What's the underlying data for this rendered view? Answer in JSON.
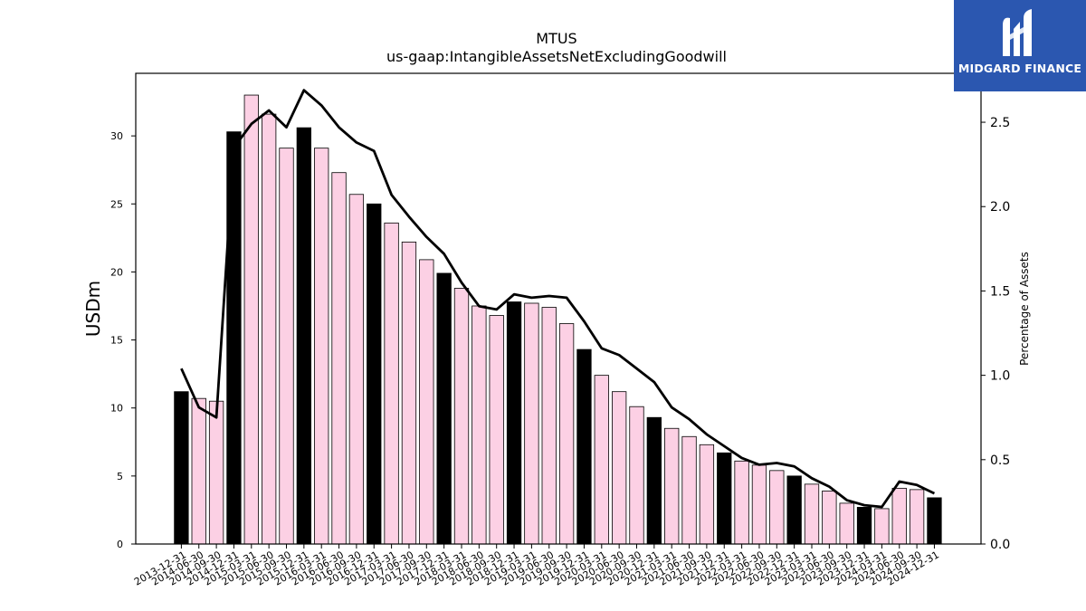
{
  "chart_data": {
    "type": "bar",
    "title": "MTUS",
    "subtitle": "us-gaap:IntangibleAssetsNetExcludingGoodwill",
    "ylabel": "USDm",
    "y2label": "Percentage of Assets",
    "ylim": [
      0,
      34.6
    ],
    "y2lim": [
      0,
      2.79
    ],
    "yticks": [
      0,
      5,
      10,
      15,
      20,
      25,
      30
    ],
    "y2ticks": [
      0.0,
      0.5,
      1.0,
      1.5,
      2.0,
      2.5
    ],
    "y2tick_labels": [
      "0.0",
      "0.5",
      "1.0",
      "1.5",
      "2.0",
      "2.5"
    ],
    "categories": [
      "2013-12-31",
      "2014-06-30",
      "2014-09-30",
      "2014-12-31",
      "2015-03-31",
      "2015-06-30",
      "2015-09-30",
      "2015-12-31",
      "2016-03-31",
      "2016-06-30",
      "2016-09-30",
      "2016-12-31",
      "2017-03-31",
      "2017-06-30",
      "2017-09-30",
      "2017-12-31",
      "2018-03-31",
      "2018-06-30",
      "2018-09-30",
      "2018-12-31",
      "2019-03-31",
      "2019-06-30",
      "2019-09-30",
      "2019-12-31",
      "2020-03-31",
      "2020-06-30",
      "2020-09-30",
      "2020-12-31",
      "2021-03-31",
      "2021-06-30",
      "2021-09-30",
      "2021-12-31",
      "2022-03-31",
      "2022-06-30",
      "2022-09-30",
      "2022-12-31",
      "2023-03-31",
      "2023-06-30",
      "2023-09-30",
      "2023-12-31",
      "2024-03-31",
      "2024-06-30",
      "2024-09-30",
      "2024-12-31"
    ],
    "series": [
      {
        "kind": "bar",
        "axis": "left",
        "values": [
          11.2,
          10.7,
          10.5,
          30.3,
          33.0,
          31.6,
          29.1,
          30.6,
          29.1,
          27.3,
          25.7,
          25.0,
          23.6,
          22.2,
          20.9,
          19.9,
          18.8,
          17.5,
          16.8,
          17.8,
          17.7,
          17.4,
          16.2,
          14.3,
          12.4,
          11.2,
          10.1,
          9.3,
          8.5,
          7.9,
          7.3,
          6.7,
          6.1,
          5.8,
          5.4,
          5.0,
          4.4,
          3.9,
          3.0,
          2.7,
          2.6,
          4.1,
          4.0,
          3.4
        ]
      },
      {
        "kind": "line",
        "axis": "right",
        "values": [
          1.04,
          0.81,
          0.75,
          2.35,
          2.49,
          2.57,
          2.47,
          2.69,
          2.6,
          2.47,
          2.38,
          2.33,
          2.07,
          1.94,
          1.82,
          1.72,
          1.55,
          1.41,
          1.39,
          1.48,
          1.46,
          1.47,
          1.46,
          1.32,
          1.16,
          1.12,
          1.04,
          0.96,
          0.81,
          0.74,
          0.65,
          0.58,
          0.51,
          0.47,
          0.48,
          0.46,
          0.39,
          0.34,
          0.26,
          0.23,
          0.22,
          0.37,
          0.35,
          0.3
        ]
      }
    ],
    "bar_colors": {
      "year_end": "#000000",
      "quarter": "#fcd0e4",
      "edge": "#000000"
    },
    "line_color": "#000000",
    "grid": false,
    "legend": "none"
  },
  "logo": {
    "text": "MIDGARD FINANCE",
    "background": "#2b57b0"
  }
}
